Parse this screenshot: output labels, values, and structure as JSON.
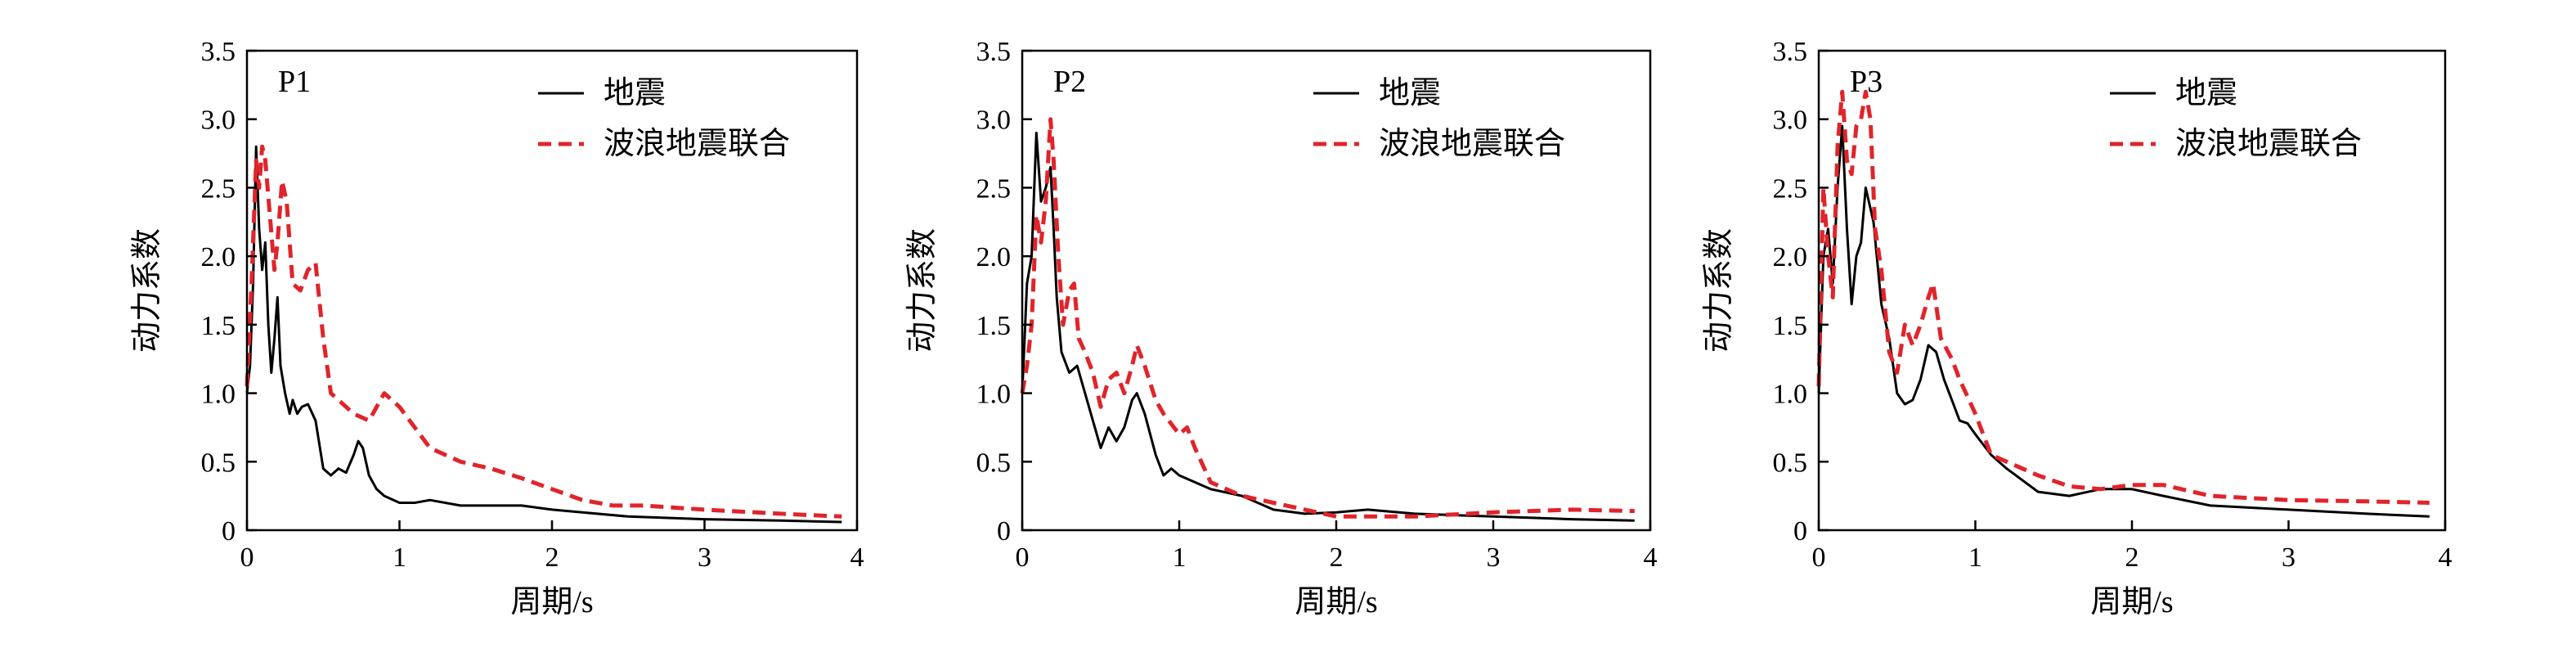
{
  "chart_data": [
    {
      "type": "line",
      "panel_label": "P1",
      "xlabel": "周期/s",
      "ylabel": "动力系数",
      "xlim": [
        0,
        4
      ],
      "ylim": [
        0,
        3.5
      ],
      "xticks": [
        "0",
        "1",
        "2",
        "3",
        "4"
      ],
      "yticks": [
        "0",
        "0.5",
        "1.0",
        "1.5",
        "2.0",
        "2.5",
        "3.0",
        "3.5"
      ],
      "legend_position": "top-right",
      "series": [
        {
          "name": "地震",
          "color": "#000000",
          "dash": "solid",
          "x": [
            0,
            0.02,
            0.04,
            0.06,
            0.08,
            0.1,
            0.12,
            0.14,
            0.16,
            0.18,
            0.2,
            0.22,
            0.25,
            0.28,
            0.3,
            0.33,
            0.36,
            0.4,
            0.45,
            0.5,
            0.55,
            0.6,
            0.65,
            0.7,
            0.73,
            0.76,
            0.8,
            0.85,
            0.9,
            1.0,
            1.1,
            1.2,
            1.4,
            1.6,
            1.8,
            2.0,
            2.2,
            2.5,
            3.0,
            3.5,
            3.9
          ],
          "y": [
            1.0,
            1.2,
            1.8,
            2.8,
            2.2,
            1.9,
            2.1,
            1.5,
            1.15,
            1.4,
            1.7,
            1.2,
            1.0,
            0.85,
            0.95,
            0.85,
            0.9,
            0.92,
            0.8,
            0.45,
            0.4,
            0.45,
            0.42,
            0.55,
            0.65,
            0.6,
            0.4,
            0.3,
            0.25,
            0.2,
            0.2,
            0.22,
            0.18,
            0.18,
            0.18,
            0.15,
            0.13,
            0.1,
            0.08,
            0.07,
            0.06
          ]
        },
        {
          "name": "波浪地震联合",
          "color": "#e0242b",
          "dash": "dashed",
          "x": [
            0,
            0.03,
            0.06,
            0.08,
            0.1,
            0.12,
            0.15,
            0.18,
            0.2,
            0.23,
            0.26,
            0.3,
            0.35,
            0.4,
            0.45,
            0.5,
            0.55,
            0.6,
            0.7,
            0.8,
            0.9,
            1.0,
            1.1,
            1.2,
            1.4,
            1.6,
            1.8,
            2.0,
            2.2,
            2.4,
            2.6,
            3.0,
            3.5,
            3.9
          ],
          "y": [
            1.05,
            1.8,
            2.7,
            2.5,
            2.8,
            2.7,
            2.3,
            1.9,
            2.1,
            2.55,
            2.4,
            1.8,
            1.75,
            1.9,
            1.95,
            1.4,
            1.0,
            0.95,
            0.85,
            0.8,
            1.0,
            0.9,
            0.75,
            0.6,
            0.5,
            0.45,
            0.38,
            0.3,
            0.22,
            0.18,
            0.18,
            0.15,
            0.12,
            0.1
          ]
        }
      ]
    },
    {
      "type": "line",
      "panel_label": "P2",
      "xlabel": "周期/s",
      "ylabel": "动力系数",
      "xlim": [
        0,
        4
      ],
      "ylim": [
        0,
        3.5
      ],
      "xticks": [
        "0",
        "1",
        "2",
        "3",
        "4"
      ],
      "yticks": [
        "0",
        "0.5",
        "1.0",
        "1.5",
        "2.0",
        "2.5",
        "3.0",
        "3.5"
      ],
      "legend_position": "top-right",
      "series": [
        {
          "name": "地震",
          "color": "#000000",
          "dash": "solid",
          "x": [
            0,
            0.03,
            0.06,
            0.09,
            0.12,
            0.15,
            0.18,
            0.2,
            0.22,
            0.25,
            0.3,
            0.35,
            0.4,
            0.45,
            0.5,
            0.55,
            0.6,
            0.65,
            0.7,
            0.73,
            0.78,
            0.85,
            0.9,
            0.95,
            1.0,
            1.1,
            1.2,
            1.4,
            1.6,
            1.8,
            2.0,
            2.2,
            2.5,
            3.0,
            3.5,
            3.9
          ],
          "y": [
            1.0,
            1.8,
            2.0,
            2.9,
            2.4,
            2.5,
            2.65,
            2.2,
            1.7,
            1.3,
            1.15,
            1.2,
            1.0,
            0.8,
            0.6,
            0.75,
            0.65,
            0.75,
            0.95,
            1.0,
            0.85,
            0.55,
            0.4,
            0.45,
            0.4,
            0.35,
            0.3,
            0.25,
            0.15,
            0.12,
            0.13,
            0.15,
            0.12,
            0.1,
            0.08,
            0.07
          ]
        },
        {
          "name": "波浪地震联合",
          "color": "#e0242b",
          "dash": "dashed",
          "x": [
            0,
            0.03,
            0.06,
            0.09,
            0.12,
            0.15,
            0.18,
            0.2,
            0.23,
            0.26,
            0.3,
            0.33,
            0.36,
            0.4,
            0.45,
            0.5,
            0.55,
            0.6,
            0.65,
            0.7,
            0.73,
            0.78,
            0.85,
            0.9,
            1.0,
            1.05,
            1.1,
            1.2,
            1.4,
            1.6,
            1.8,
            2.0,
            2.5,
            3.0,
            3.5,
            3.9
          ],
          "y": [
            1.0,
            1.2,
            1.5,
            2.3,
            2.1,
            2.4,
            3.0,
            2.7,
            2.0,
            1.5,
            1.75,
            1.8,
            1.4,
            1.3,
            1.15,
            0.9,
            1.1,
            1.15,
            1.0,
            1.2,
            1.35,
            1.2,
            0.95,
            0.85,
            0.7,
            0.75,
            0.6,
            0.35,
            0.25,
            0.2,
            0.15,
            0.1,
            0.1,
            0.13,
            0.15,
            0.14
          ]
        }
      ]
    },
    {
      "type": "line",
      "panel_label": "P3",
      "xlabel": "周期/s",
      "ylabel": "动力系数",
      "xlim": [
        0,
        4
      ],
      "ylim": [
        0,
        3.5
      ],
      "xticks": [
        "0",
        "1",
        "2",
        "3",
        "4"
      ],
      "yticks": [
        "0",
        "0.5",
        "1.0",
        "1.5",
        "2.0",
        "2.5",
        "3.0",
        "3.5"
      ],
      "legend_position": "top-right",
      "series": [
        {
          "name": "地震",
          "color": "#000000",
          "dash": "solid",
          "x": [
            0,
            0.03,
            0.06,
            0.09,
            0.12,
            0.15,
            0.18,
            0.21,
            0.24,
            0.27,
            0.3,
            0.35,
            0.4,
            0.45,
            0.5,
            0.55,
            0.6,
            0.65,
            0.7,
            0.75,
            0.8,
            0.85,
            0.9,
            0.95,
            1.0,
            1.1,
            1.2,
            1.4,
            1.6,
            1.8,
            2.0,
            2.2,
            2.5,
            3.0,
            3.5,
            3.9
          ],
          "y": [
            1.0,
            2.0,
            2.2,
            1.8,
            2.5,
            2.95,
            2.2,
            1.65,
            2.0,
            2.1,
            2.5,
            2.25,
            1.65,
            1.4,
            1.0,
            0.92,
            0.95,
            1.1,
            1.35,
            1.3,
            1.1,
            0.95,
            0.8,
            0.78,
            0.7,
            0.55,
            0.45,
            0.28,
            0.25,
            0.3,
            0.3,
            0.25,
            0.18,
            0.15,
            0.12,
            0.1
          ]
        },
        {
          "name": "波浪地震联合",
          "color": "#e0242b",
          "dash": "dashed",
          "x": [
            0,
            0.03,
            0.06,
            0.09,
            0.12,
            0.15,
            0.18,
            0.21,
            0.24,
            0.27,
            0.3,
            0.33,
            0.36,
            0.4,
            0.45,
            0.5,
            0.55,
            0.6,
            0.65,
            0.7,
            0.73,
            0.78,
            0.85,
            0.9,
            1.0,
            1.1,
            1.2,
            1.4,
            1.6,
            1.8,
            2.0,
            2.2,
            2.5,
            3.0,
            3.5,
            3.9
          ],
          "y": [
            1.05,
            2.5,
            2.0,
            1.7,
            2.8,
            3.2,
            2.7,
            2.6,
            2.95,
            3.0,
            3.2,
            3.0,
            2.2,
            1.9,
            1.3,
            1.15,
            1.5,
            1.35,
            1.5,
            1.7,
            1.8,
            1.4,
            1.25,
            1.1,
            0.85,
            0.55,
            0.5,
            0.4,
            0.32,
            0.3,
            0.33,
            0.33,
            0.25,
            0.22,
            0.21,
            0.2
          ]
        }
      ]
    }
  ]
}
